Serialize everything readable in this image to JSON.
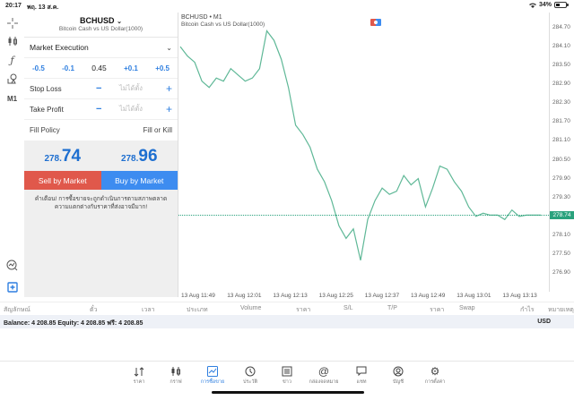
{
  "status_bar": {
    "time": "20:17",
    "date": "พฤ. 13 ส.ค.",
    "battery": "34%"
  },
  "toolbar": {
    "items": [
      {
        "name": "crosshair-icon"
      },
      {
        "name": "candlestick-icon"
      },
      {
        "name": "function-icon"
      },
      {
        "name": "objects-icon"
      },
      {
        "name": "timeframe",
        "label": "M1"
      }
    ],
    "bottom_items": [
      {
        "name": "chart-zoom-icon"
      },
      {
        "name": "new-order-icon"
      }
    ]
  },
  "order_panel": {
    "symbol": "BCHUSD",
    "symbol_desc": "Bitcoin Cash vs US Dollar(1000)",
    "execution": "Market Execution",
    "lot_steps": [
      "-0.5",
      "-0.1",
      "+0.1",
      "+0.5"
    ],
    "volume": "0.45",
    "stop_loss": {
      "label": "Stop Loss",
      "minus": "−",
      "placeholder": "ไม่ได้ตั้ง",
      "plus": "+"
    },
    "take_profit": {
      "label": "Take Profit",
      "minus": "−",
      "placeholder": "ไม่ได้ตั้ง",
      "plus": "+"
    },
    "fill_policy": {
      "label": "Fill Policy",
      "value": "Fill or Kill"
    },
    "bid": {
      "prefix": "278.",
      "big": "74"
    },
    "ask": {
      "prefix": "278.",
      "big": "96"
    },
    "sell_label": "Sell by Market",
    "buy_label": "Buy by Market",
    "warning": "คำเตือน! การซื้อขายจะถูกดำเนินการตามสภาพตลาด ความแตกต่างกับราคาที่ส่งอาจมีมาก!"
  },
  "chart": {
    "title": "BCHUSD • M1",
    "subtitle": "Bitcoin Cash vs US Dollar(1000)",
    "current_price": "278.74",
    "line_color": "#5fb897",
    "accent": "#2aa27d"
  },
  "chart_data": {
    "type": "line",
    "title": "BCHUSD • M1",
    "subtitle": "Bitcoin Cash vs US Dollar(1000)",
    "xlabel": "",
    "ylabel": "",
    "ylim": [
      276.5,
      285.0
    ],
    "y_ticks": [
      "284.70",
      "284.10",
      "283.50",
      "282.90",
      "282.30",
      "281.70",
      "281.10",
      "280.50",
      "279.90",
      "279.30",
      "278.74",
      "278.10",
      "277.50",
      "276.90"
    ],
    "x_ticks": [
      "13 Aug 11:49",
      "13 Aug 12:01",
      "13 Aug 12:13",
      "13 Aug 12:25",
      "13 Aug 12:37",
      "13 Aug 12:49",
      "13 Aug 13:01",
      "13 Aug 13:13"
    ],
    "current_price_line": 278.74,
    "series": [
      {
        "name": "BCHUSD Close",
        "x_index": [
          0,
          2,
          4,
          6,
          8,
          10,
          12,
          14,
          16,
          18,
          20,
          22,
          24,
          26,
          28,
          30,
          32,
          34,
          36,
          38,
          40,
          42,
          44,
          46,
          48,
          50,
          52,
          54,
          56,
          58,
          60,
          62,
          64,
          66,
          68,
          70,
          72,
          74,
          76,
          78,
          80,
          82,
          84,
          86,
          88,
          90,
          92,
          94,
          96,
          98,
          100
        ],
        "values": [
          284.1,
          283.8,
          283.6,
          283.0,
          282.8,
          283.1,
          283.0,
          283.4,
          283.2,
          283.0,
          283.1,
          283.4,
          284.6,
          284.3,
          283.7,
          282.8,
          281.6,
          281.3,
          280.9,
          280.2,
          279.8,
          279.2,
          278.4,
          278.0,
          278.3,
          277.3,
          278.6,
          279.2,
          279.6,
          279.4,
          279.5,
          280.0,
          279.7,
          279.9,
          279.0,
          279.6,
          280.3,
          280.2,
          279.8,
          279.5,
          279.0,
          278.7,
          278.8,
          278.74,
          278.74,
          278.6,
          278.9,
          278.7,
          278.74,
          278.74,
          278.74
        ]
      }
    ]
  },
  "table_header": {
    "columns": [
      "สัญลักษณ์",
      "ตั๋ว",
      "เวลา",
      "ประเภท",
      "Volume",
      "ราคา",
      "S/L",
      "T/P",
      "ราคา",
      "Swap",
      "กำไร",
      "หมายเหตุ"
    ]
  },
  "balance_bar": {
    "text": "Balance: 4 208.85 Equity: 4 208.85 ฟรี: 4 208.85",
    "currency": "USD"
  },
  "bottom_nav": {
    "items": [
      {
        "label": "ราคา",
        "icon": "quotes-icon"
      },
      {
        "label": "กราฟ",
        "icon": "chart-icon"
      },
      {
        "label": "การซื้อขาย",
        "icon": "trade-icon",
        "active": true
      },
      {
        "label": "ประวัติ",
        "icon": "history-icon"
      },
      {
        "label": "ข่าว",
        "icon": "news-icon"
      },
      {
        "label": "กล่องจดหมาย",
        "icon": "mailbox-icon"
      },
      {
        "label": "แชท",
        "icon": "chat-icon"
      },
      {
        "label": "บัญชี",
        "icon": "account-icon"
      },
      {
        "label": "การตั้งค่า",
        "icon": "settings-icon"
      }
    ],
    "active_color": "#2f7fe0"
  }
}
